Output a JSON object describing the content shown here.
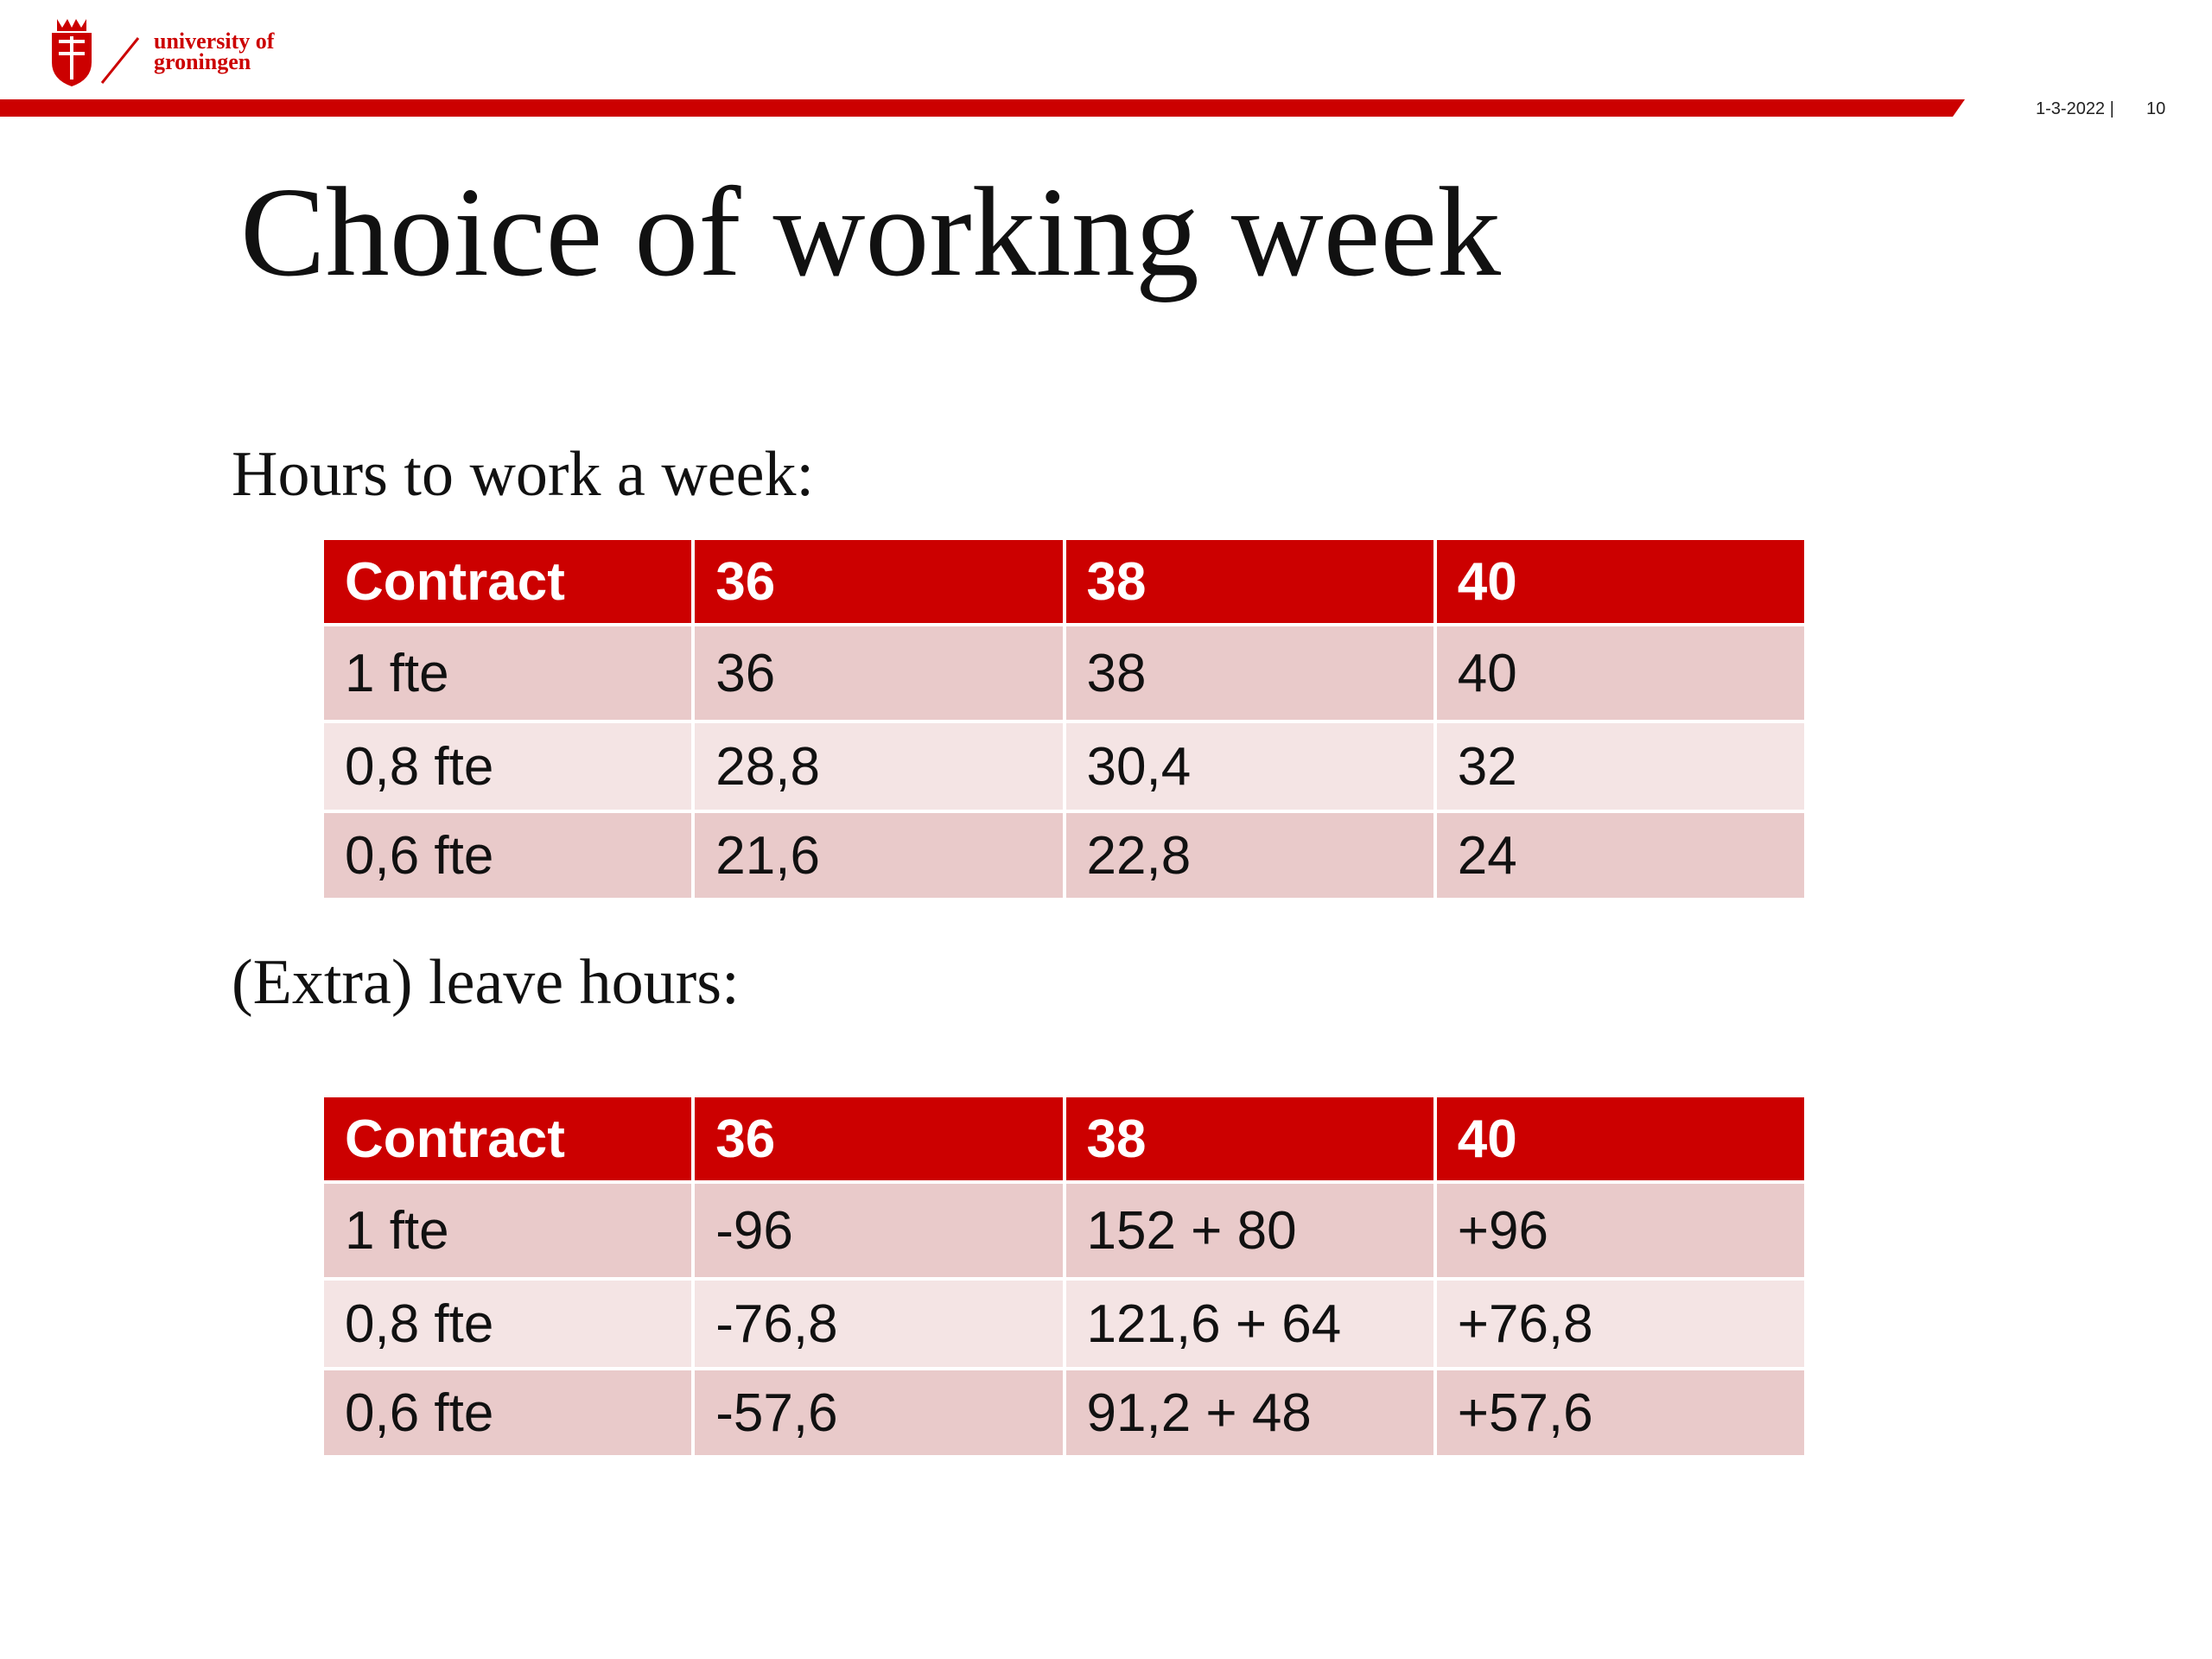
{
  "header": {
    "logo_line1": "university of",
    "logo_line2": "groningen",
    "date": "1-3-2022 |",
    "page": "10"
  },
  "title": "Choice of working week",
  "section1": "Hours to work a week:",
  "table1": {
    "header": [
      "Contract",
      "36",
      "38",
      "40"
    ],
    "rows": [
      [
        "1 fte",
        "36",
        "38",
        "40"
      ],
      [
        "0,8 fte",
        "28,8",
        "30,4",
        "32"
      ],
      [
        "0,6 fte",
        "21,6",
        "22,8",
        "24"
      ]
    ]
  },
  "section2": "(Extra) leave hours:",
  "table2": {
    "header": [
      "Contract",
      "36",
      "38",
      "40"
    ],
    "rows": [
      [
        "1 fte",
        "-96",
        "152 + 80",
        "+96"
      ],
      [
        "0,8 fte",
        "-76,8",
        "121,6 + 64",
        "+76,8"
      ],
      [
        "0,6 fte",
        "-57,6",
        "91,2 + 48",
        "+57,6"
      ]
    ]
  }
}
